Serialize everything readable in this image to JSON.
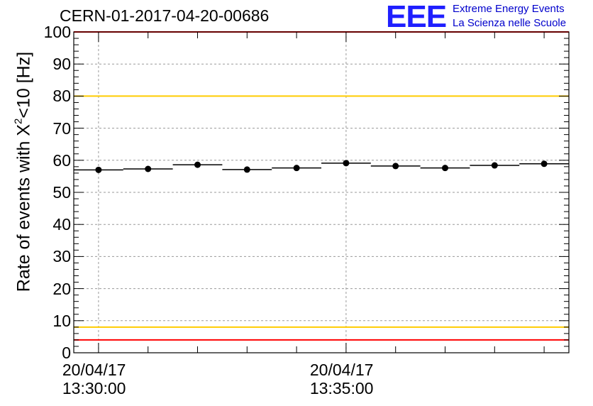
{
  "header": {
    "title": "CERN-01-2017-04-20-00686",
    "logo_text": "EEE",
    "brand_line1": "Extreme Energy Events",
    "brand_line2": "La Scienza nelle Scuole"
  },
  "chart_data": {
    "type": "scatter",
    "title": "CERN-01-2017-04-20-00686",
    "ylabel_pre": "Rate of events with X",
    "ylabel_sup": "2",
    "ylabel_post": "<10 [Hz]",
    "xlabel": "",
    "ylim": [
      0,
      100
    ],
    "yticks": [
      "0",
      "10",
      "20",
      "30",
      "40",
      "50",
      "60",
      "70",
      "80",
      "90",
      "100"
    ],
    "xlim": [
      "2017-04-20 13:29:30",
      "2017-04-20 13:39:30"
    ],
    "xticks": [
      {
        "date": "20/04/17",
        "time": "13:30:00"
      },
      {
        "date": "20/04/17",
        "time": "13:35:00"
      }
    ],
    "grid": true,
    "bin_width_seconds": 60,
    "series": [
      {
        "x": [
          "13:30:00",
          "13:31:00",
          "13:32:00",
          "13:33:00",
          "13:34:00",
          "13:35:00",
          "13:36:00",
          "13:37:00",
          "13:38:00",
          "13:39:00"
        ],
        "values": [
          57.0,
          57.3,
          58.6,
          57.1,
          57.6,
          59.1,
          58.2,
          57.6,
          58.4,
          58.9
        ]
      }
    ],
    "reference_lines": [
      {
        "y": 100,
        "color": "#ff0000"
      },
      {
        "y": 80,
        "color": "#ffcc00"
      },
      {
        "y": 8,
        "color": "#ffcc00"
      },
      {
        "y": 4,
        "color": "#ff0000"
      }
    ]
  }
}
